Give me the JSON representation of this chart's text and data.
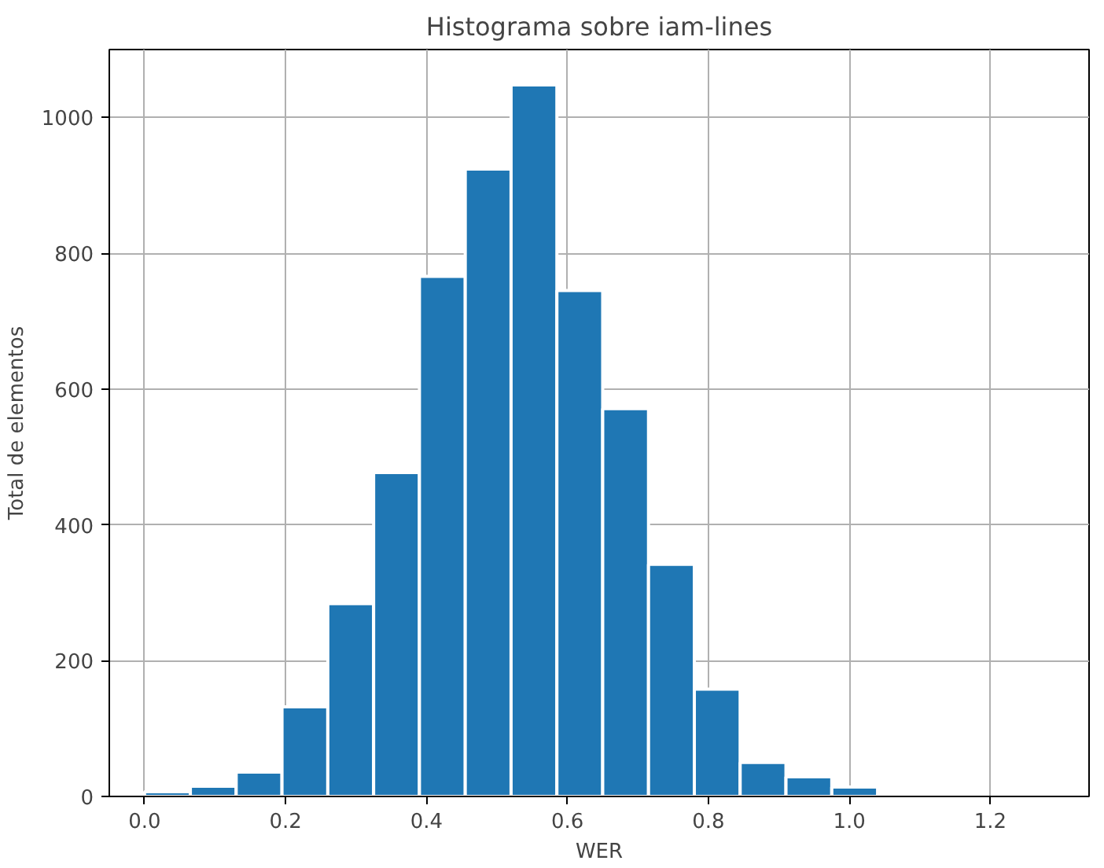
{
  "chart_data": {
    "type": "histogram",
    "title": "Histograma sobre iam-lines",
    "xlabel": "WER",
    "ylabel": "Total de elementos",
    "bins": [
      0,
      0.065,
      0.13,
      0.195,
      0.26,
      0.325,
      0.39,
      0.455,
      0.52,
      0.585,
      0.65,
      0.715,
      0.78,
      0.845,
      0.91,
      0.975,
      1.04
    ],
    "values": [
      7,
      15,
      36,
      132,
      284,
      477,
      766,
      924,
      1048,
      745,
      571,
      342,
      158,
      50,
      29,
      14
    ],
    "color": "#1f77b4",
    "xlim": [
      -0.05,
      1.34
    ],
    "xticks": [
      {
        "value": 0,
        "label": "0.0"
      },
      0.2,
      0.4,
      0.6,
      0.8,
      {
        "value": 1,
        "label": "1.0"
      },
      1.2
    ],
    "ylim": [
      0,
      1100
    ],
    "yticks": [
      0,
      200,
      400,
      600,
      800,
      1000
    ],
    "grid": true
  }
}
